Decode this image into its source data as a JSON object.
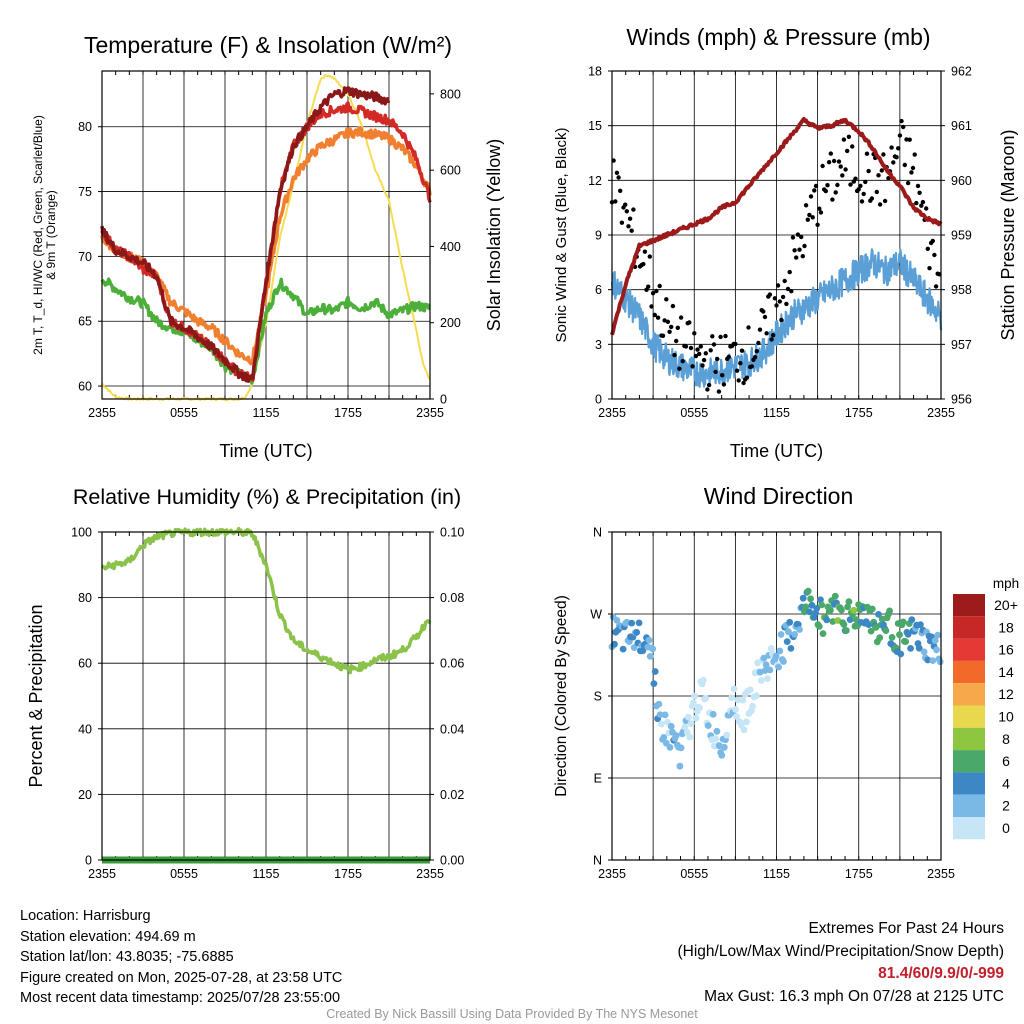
{
  "chart_data": [
    {
      "type": "line",
      "title": "Temperature (F) & Insolation (W/m²)",
      "xlabel": "Time (UTC)",
      "ylabel": "2m T, T_d, HI/WC (Red, Green, Scarlet/Blue)",
      "ylabel2": "& 9m T (Orange)",
      "y2label": "Solar Insolation (Yellow)",
      "x_ticks": [
        "2355",
        "0555",
        "1155",
        "1755",
        "2355"
      ],
      "y_ticks": [
        "60",
        "65",
        "70",
        "75",
        "80"
      ],
      "y2_ticks": [
        "0",
        "200",
        "400",
        "600",
        "800"
      ],
      "xlim": [
        0,
        24
      ],
      "ylim": [
        59.0,
        84.3
      ],
      "y2lim": [
        0,
        860
      ],
      "colors": {
        "temp": "#d42a26",
        "dewpoint": "#4caf3a",
        "heat_index": "#8b1818",
        "temp_9m": "#f08030",
        "insolation": "#f5dc50"
      },
      "series": [
        {
          "name": "2m T",
          "axis": "y",
          "color": "#d42a26",
          "x": [
            0,
            1,
            2,
            3,
            4,
            5,
            6,
            7,
            8,
            9,
            10,
            11,
            12,
            13,
            14,
            15,
            16,
            17,
            18,
            19,
            20,
            21,
            22,
            23,
            24
          ],
          "values": [
            72,
            70.5,
            70,
            69,
            68.5,
            65,
            64.5,
            63.8,
            63,
            62,
            61,
            60.5,
            68,
            75,
            78.5,
            80,
            81,
            81.3,
            81.5,
            81.2,
            80.8,
            80.5,
            79.5,
            77.5,
            74.5
          ]
        },
        {
          "name": "2m Td",
          "axis": "y",
          "color": "#4caf3a",
          "x": [
            0,
            1,
            2,
            3,
            4,
            5,
            6,
            7,
            8,
            9,
            10,
            11,
            12,
            13,
            14,
            15,
            16,
            17,
            18,
            19,
            20,
            21,
            22,
            23,
            24
          ],
          "values": [
            68.3,
            67.5,
            66.8,
            66.4,
            65,
            64.5,
            64.2,
            63.5,
            63,
            61.5,
            61,
            60.5,
            65.5,
            68,
            67,
            65.5,
            66,
            65.8,
            66.5,
            66,
            66.5,
            65.5,
            65.8,
            66.2,
            66
          ]
        },
        {
          "name": "HI/WC",
          "axis": "y",
          "color": "#8b1818",
          "x": [
            0,
            1,
            2,
            3,
            4,
            5,
            6,
            7,
            8,
            9,
            10,
            11,
            12,
            13,
            14,
            15,
            16,
            17,
            18,
            19,
            20,
            21
          ],
          "values": [
            72,
            70.5,
            70,
            69.5,
            68.5,
            65,
            64.5,
            63.8,
            63,
            62,
            61,
            60.5,
            68,
            75,
            78.5,
            80,
            81.5,
            82.5,
            82.8,
            82.5,
            82.3,
            82
          ]
        },
        {
          "name": "9m T",
          "axis": "y",
          "color": "#f08030",
          "x": [
            0,
            1,
            2,
            3,
            4,
            5,
            6,
            7,
            8,
            9,
            10,
            11,
            12,
            13,
            14,
            15,
            16,
            17,
            18,
            19,
            20,
            21,
            22,
            23,
            24
          ],
          "values": [
            71.5,
            70.5,
            70,
            69.5,
            68.5,
            66.5,
            65.8,
            65,
            64.5,
            63.5,
            62.5,
            62,
            67,
            73,
            76,
            77.5,
            78.5,
            79,
            79.5,
            79.6,
            79.4,
            79.1,
            78.3,
            77,
            75
          ]
        },
        {
          "name": "Solar Insolation",
          "axis": "y2",
          "color": "#f5dc50",
          "x": [
            0,
            1,
            2,
            3,
            4,
            5,
            6,
            7,
            8,
            9,
            10,
            10.5,
            11,
            12,
            13,
            14,
            15,
            16,
            16.5,
            17,
            18,
            19,
            20,
            21,
            22,
            23,
            23.5,
            24
          ],
          "values": [
            40,
            5,
            0,
            0,
            0,
            0,
            0,
            0,
            0,
            0,
            0,
            5,
            40,
            200,
            420,
            560,
            720,
            840,
            850,
            840,
            800,
            720,
            600,
            520,
            340,
            180,
            90,
            50
          ]
        }
      ]
    },
    {
      "type": "line",
      "title": "Winds (mph) & Pressure (mb)",
      "xlabel": "Time (UTC)",
      "ylabel": "Sonic Wind & Gust (Blue, Black)",
      "y2label": "Station Pressure (Maroon)",
      "x_ticks": [
        "2355",
        "0555",
        "1155",
        "1755",
        "2355"
      ],
      "y_ticks": [
        "0",
        "3",
        "6",
        "9",
        "12",
        "15",
        "18"
      ],
      "y2_ticks": [
        "956",
        "957",
        "958",
        "959",
        "960",
        "961",
        "962"
      ],
      "xlim": [
        0,
        24
      ],
      "ylim": [
        0,
        18
      ],
      "y2lim": [
        956,
        962
      ],
      "colors": {
        "wind": "#5a9fd6",
        "gust": "#000000",
        "pressure": "#9b1b1b"
      },
      "series": [
        {
          "name": "Sonic Wind",
          "axis": "y",
          "color": "#5a9fd6",
          "x": [
            0,
            1,
            2,
            3,
            4,
            5,
            6,
            7,
            8,
            9,
            10,
            11,
            12,
            13,
            14,
            15,
            16,
            17,
            18,
            19,
            20,
            21,
            22,
            23,
            24
          ],
          "values": [
            6.5,
            5.5,
            4.5,
            3,
            2.2,
            1.8,
            1.5,
            1.4,
            1.6,
            1.8,
            2,
            2.5,
            3.5,
            4.5,
            5,
            5.5,
            6,
            6.5,
            7,
            7.5,
            7,
            7.5,
            6.5,
            5.5,
            4.5
          ]
        },
        {
          "name": "Gust",
          "axis": "y",
          "color": "#000000",
          "x": [
            0,
            1,
            2,
            3,
            4,
            5,
            6,
            7,
            8,
            9,
            10,
            11,
            12,
            13,
            14,
            15,
            16,
            17,
            18,
            19,
            20,
            21,
            22,
            23,
            24
          ],
          "values": [
            12,
            10,
            8,
            6,
            4,
            3,
            2.5,
            2,
            2,
            2.3,
            2.5,
            3.5,
            5,
            7,
            9,
            11,
            12,
            13,
            12.5,
            12,
            12,
            14,
            12.5,
            9,
            6
          ]
        },
        {
          "name": "Station Pressure",
          "axis": "y2",
          "color": "#9b1b1b",
          "x": [
            0,
            1,
            2,
            3,
            4,
            5,
            6,
            7,
            8,
            9,
            10,
            11,
            12,
            13,
            14,
            15,
            16,
            17,
            18,
            19,
            20,
            21,
            22,
            23,
            24
          ],
          "values": [
            957.2,
            958.1,
            958.8,
            958.9,
            959,
            959.1,
            959.2,
            959.3,
            959.5,
            959.6,
            959.9,
            960.2,
            960.5,
            960.8,
            961.1,
            960.95,
            961,
            961.1,
            960.9,
            960.6,
            960.2,
            959.9,
            959.5,
            959.3,
            959.2
          ]
        }
      ]
    },
    {
      "type": "line",
      "title": "Relative Humidity (%) & Precipitation (in)",
      "xlabel": "",
      "ylabel": "Percent & Precipitation",
      "x_ticks": [
        "2355",
        "0555",
        "1155",
        "1755",
        "2355"
      ],
      "y_ticks": [
        "0",
        "20",
        "40",
        "60",
        "80",
        "100"
      ],
      "y2_ticks": [
        "0.00",
        "0.02",
        "0.04",
        "0.06",
        "0.08",
        "0.10"
      ],
      "xlim": [
        0,
        24
      ],
      "ylim": [
        0,
        100
      ],
      "y2lim": [
        0,
        0.1
      ],
      "colors": {
        "rh": "#8bc34a",
        "precip": "#3a9a3a"
      },
      "series": [
        {
          "name": "Relative Humidity",
          "axis": "y",
          "color": "#8bc34a",
          "x": [
            0,
            1,
            2,
            3,
            4,
            5,
            6,
            7,
            8,
            9,
            10,
            11,
            12,
            13,
            14,
            15,
            16,
            17,
            18,
            19,
            20,
            21,
            22,
            23,
            24
          ],
          "values": [
            89,
            90,
            91,
            96,
            98.5,
            99.5,
            99.8,
            100,
            100,
            100,
            100,
            99.5,
            90,
            75,
            67,
            64,
            62,
            60,
            58,
            59,
            61,
            62,
            64,
            68,
            74
          ]
        },
        {
          "name": "Precipitation",
          "axis": "y2",
          "color": "#3a9a3a",
          "x": [
            0,
            24
          ],
          "values": [
            0,
            0
          ]
        }
      ]
    },
    {
      "type": "scatter",
      "title": "Wind Direction",
      "xlabel": "",
      "ylabel": "Direction (Colored By Speed)",
      "x_ticks": [
        "2355",
        "0555",
        "1155",
        "1755",
        "2355"
      ],
      "y_ticks": [
        "N",
        "E",
        "S",
        "W",
        "N"
      ],
      "xlim": [
        0,
        24
      ],
      "ylim": [
        0,
        360
      ],
      "x": [
        0,
        0.5,
        1,
        1.5,
        2,
        2.5,
        3,
        3.5,
        4,
        4.5,
        5,
        5.5,
        6,
        6.5,
        7,
        7.5,
        8,
        8.5,
        9,
        9.5,
        10,
        10.5,
        11,
        11.5,
        12,
        12.5,
        13,
        13.5,
        14,
        14.5,
        15,
        15.5,
        16,
        16.5,
        17,
        17.5,
        18,
        18.5,
        19,
        19.5,
        20,
        20.5,
        21,
        21.5,
        22,
        22.5,
        23,
        23.5,
        24
      ],
      "values": [
        250,
        245,
        242,
        243,
        245,
        250,
        220,
        150,
        140,
        130,
        120,
        140,
        165,
        190,
        155,
        140,
        125,
        165,
        180,
        155,
        175,
        195,
        210,
        215,
        225,
        235,
        245,
        260,
        275,
        285,
        270,
        265,
        280,
        275,
        270,
        265,
        270,
        275,
        260,
        255,
        260,
        250,
        245,
        240,
        248,
        242,
        235,
        230,
        228
      ],
      "speed": [
        4,
        4,
        3,
        4,
        4,
        4,
        4,
        3,
        2,
        3,
        3,
        2,
        1,
        0,
        2,
        2,
        3,
        2,
        1,
        1,
        1,
        1,
        2,
        2,
        3,
        3,
        4,
        4,
        5,
        6,
        6,
        7,
        6,
        7,
        7,
        7,
        7,
        6,
        7,
        7,
        6,
        6,
        7,
        6,
        5,
        4,
        4,
        3,
        3
      ],
      "colorbar": {
        "unit": "mph",
        "labels": [
          "20+",
          "18",
          "16",
          "14",
          "12",
          "10",
          "8",
          "6",
          "4",
          "2",
          "0"
        ],
        "colors": [
          "#9e1b1b",
          "#c62828",
          "#e53935",
          "#f26a2a",
          "#f6a84a",
          "#e8d84e",
          "#8ec63f",
          "#4aa86a",
          "#3d88c4",
          "#7ab8e6",
          "#c6e6f8"
        ]
      }
    }
  ],
  "footer": {
    "location": "Location: Harrisburg",
    "elevation": "Station elevation: 494.69 m",
    "latlon": "Station lat/lon: 43.8035; -75.6885",
    "created": "Figure created on Mon, 2025-07-28, at 23:58 UTC",
    "recent": "Most recent data timestamp: 2025/07/28 23:55:00"
  },
  "extremes": {
    "title": "Extremes For Past 24 Hours",
    "subtitle": "(High/Low/Max Wind/Precipitation/Snow Depth)",
    "values": "81.4/60/9.9/0/-999",
    "max_gust": "Max Gust: 16.3 mph On 07/28 at 2125 UTC"
  },
  "credit": "Created By Nick Bassill Using Data Provided By The NYS Mesonet"
}
